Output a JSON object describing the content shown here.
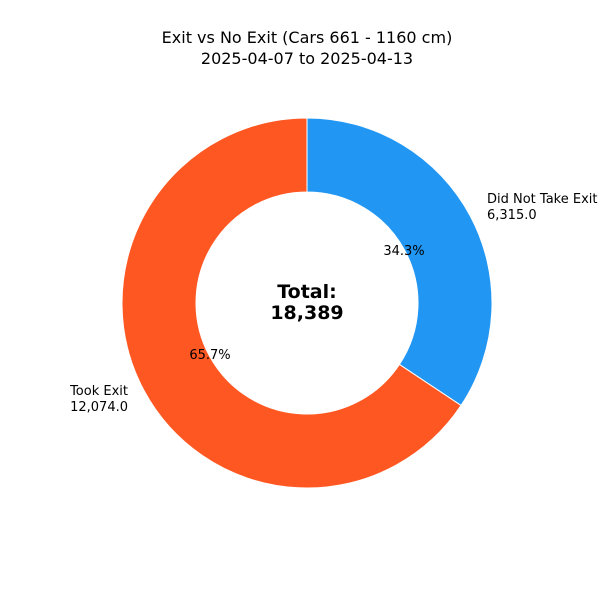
{
  "chart_data": {
    "type": "pie",
    "variant": "donut",
    "title": "Exit vs No Exit (Cars 661 - 1160 cm)",
    "subtitle": "2025-04-07 to 2025-04-13",
    "slices": [
      {
        "label": "Did Not Take Exit",
        "value_label": "6,315.0",
        "value": 6315,
        "percent": 34.3,
        "percent_label": "34.3%",
        "color": "#2196F3"
      },
      {
        "label": "Took Exit",
        "value_label": "12,074.0",
        "value": 12074,
        "percent": 65.7,
        "percent_label": "65.7%",
        "color": "#FF5722"
      }
    ],
    "center_label": "Total:",
    "center_value": "18,389",
    "start_angle": "top",
    "direction": "clockwise"
  }
}
